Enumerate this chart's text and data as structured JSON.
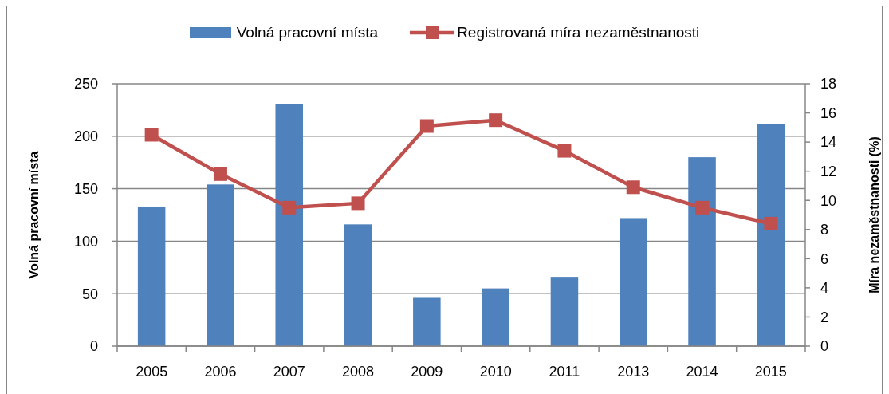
{
  "chart_data": {
    "type": "bar",
    "categories": [
      "2005",
      "2006",
      "2007",
      "2008",
      "2009",
      "2010",
      "2011",
      "2013",
      "2014",
      "2015"
    ],
    "series": [
      {
        "name": "Volná pracovní místa",
        "color": "#4f81bd",
        "values": [
          133,
          154,
          231,
          116,
          46,
          55,
          66,
          122,
          180,
          212
        ]
      },
      {
        "name": "Registrovaná míra nezaměstnanosti",
        "type": "line",
        "axis": "y2",
        "color": "#c0504d",
        "values": [
          14.5,
          11.8,
          9.5,
          9.8,
          15.1,
          15.5,
          13.4,
          10.9,
          9.5,
          8.4
        ]
      }
    ],
    "ylabel": "Volná pracovní místa",
    "y2label": "Míra nezaměstnanosti (%)",
    "ylim": [
      0,
      250
    ],
    "yticks": [
      0,
      50,
      100,
      150,
      200,
      250
    ],
    "y2lim": [
      0,
      18
    ],
    "y2ticks": [
      0,
      2,
      4,
      6,
      8,
      10,
      12,
      14,
      16,
      18
    ],
    "grid": "y",
    "legend": "top",
    "marker": "square"
  }
}
